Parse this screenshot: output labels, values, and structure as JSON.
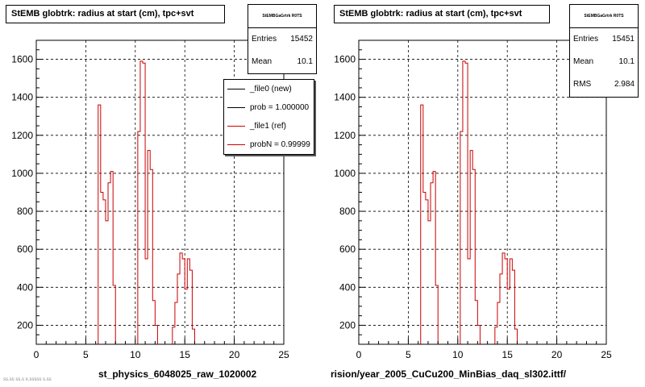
{
  "left_panel": {
    "title": "StEMB globtrk: radius at start (cm), tpc+svt",
    "stats": {
      "name": "StEMBGaGrtrk R0TS",
      "entries_label": "Entries",
      "entries": "15452",
      "mean_label": "Mean",
      "mean": "10.1"
    },
    "legend": [
      {
        "label": "_file0 (new)",
        "color": "#000000"
      },
      {
        "label": "prob = 1.000000",
        "color": "#000000"
      },
      {
        "label": "_file1 (ref)",
        "color": "#cc0000"
      },
      {
        "label": "probN = 0.99999",
        "color": "#cc0000"
      }
    ],
    "xname": "st_physics_6048025_raw_1020002",
    "corner_note": "ss.ss ss.s x.sssss s.ss"
  },
  "right_panel": {
    "title": "StEMB globtrk: radius at start (cm), tpc+svt",
    "stats": {
      "name": "StEMBGaGrtrk R0TS",
      "entries_label": "Entries",
      "entries": "15451",
      "mean_label": "Mean",
      "mean": "10.1",
      "rms_label": "RMS",
      "rms": "2.984"
    },
    "xname": "rision/year_2005_CuCu200_MinBias_daq_sl302.ittf/"
  },
  "chart_data": [
    {
      "type": "histogram",
      "title": "StEMB globtrk: radius at start (cm), tpc+svt",
      "xlim": [
        0,
        25
      ],
      "ylim": [
        100,
        1700
      ],
      "xticks": [
        0,
        5,
        10,
        15,
        20,
        25
      ],
      "yticks": [
        200,
        400,
        600,
        800,
        1000,
        1200,
        1400,
        1600
      ],
      "grid": true,
      "legend_position": "top-right",
      "series": [
        {
          "name": "_file1 (ref)",
          "color": "#cc0000",
          "bin_width": 0.25,
          "bins": [
            [
              6.25,
              1360
            ],
            [
              6.5,
              900
            ],
            [
              6.75,
              860
            ],
            [
              7.0,
              750
            ],
            [
              7.25,
              950
            ],
            [
              7.5,
              1010
            ],
            [
              7.75,
              410
            ],
            [
              10.25,
              1220
            ],
            [
              10.5,
              1590
            ],
            [
              10.75,
              1580
            ],
            [
              11.0,
              550
            ],
            [
              11.25,
              1120
            ],
            [
              11.5,
              1020
            ],
            [
              11.75,
              330
            ],
            [
              12.0,
              200
            ],
            [
              13.75,
              190
            ],
            [
              14.0,
              320
            ],
            [
              14.25,
              470
            ],
            [
              14.5,
              580
            ],
            [
              14.75,
              550
            ],
            [
              15.0,
              390
            ],
            [
              15.25,
              550
            ],
            [
              15.5,
              490
            ],
            [
              15.75,
              180
            ]
          ]
        }
      ]
    },
    {
      "type": "histogram",
      "title": "StEMB globtrk: radius at start (cm), tpc+svt",
      "xlim": [
        0,
        25
      ],
      "ylim": [
        100,
        1700
      ],
      "xticks": [
        0,
        5,
        10,
        15,
        20,
        25
      ],
      "yticks": [
        200,
        400,
        600,
        800,
        1000,
        1200,
        1400,
        1600
      ],
      "grid": true,
      "series": [
        {
          "color": "#cc0000",
          "bin_width": 0.25,
          "bins": [
            [
              6.25,
              1360
            ],
            [
              6.5,
              900
            ],
            [
              6.75,
              860
            ],
            [
              7.0,
              750
            ],
            [
              7.25,
              950
            ],
            [
              7.5,
              1010
            ],
            [
              7.75,
              410
            ],
            [
              10.25,
              1220
            ],
            [
              10.5,
              1590
            ],
            [
              10.75,
              1580
            ],
            [
              11.0,
              550
            ],
            [
              11.25,
              1120
            ],
            [
              11.5,
              1020
            ],
            [
              11.75,
              330
            ],
            [
              12.0,
              200
            ],
            [
              13.75,
              190
            ],
            [
              14.0,
              320
            ],
            [
              14.25,
              470
            ],
            [
              14.5,
              580
            ],
            [
              14.75,
              550
            ],
            [
              15.0,
              390
            ],
            [
              15.25,
              550
            ],
            [
              15.5,
              490
            ],
            [
              15.75,
              180
            ]
          ]
        }
      ]
    }
  ]
}
